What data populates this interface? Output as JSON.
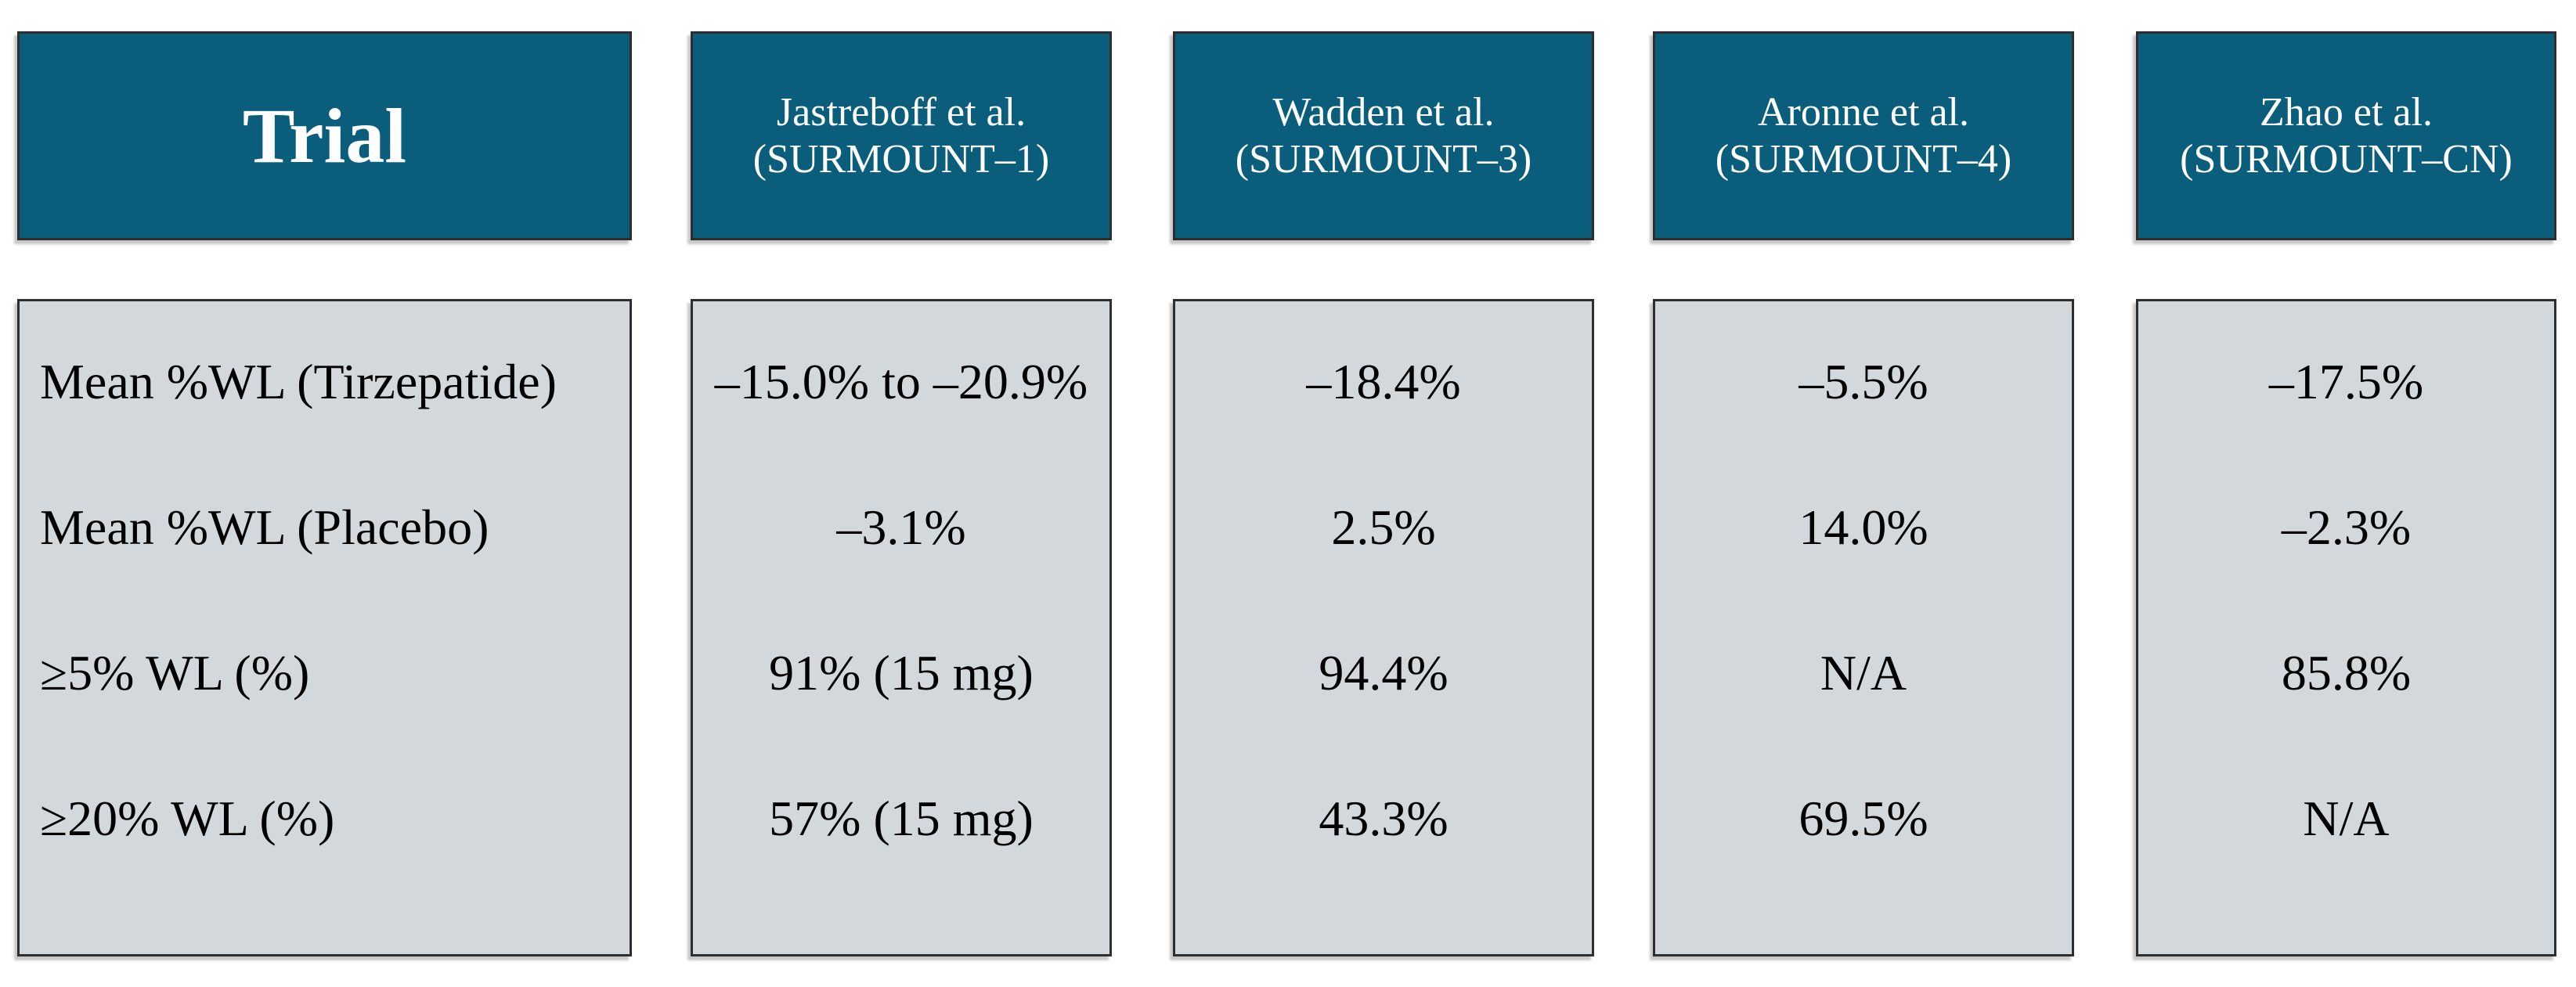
{
  "figure": {
    "type": "trial-comparison-table",
    "corner_header": "Trial",
    "columns": [
      {
        "author": "Jastreboff et al.",
        "trial": "(SURMOUNT–1)"
      },
      {
        "author": "Wadden et al.",
        "trial": "(SURMOUNT–3)"
      },
      {
        "author": "Aronne et al.",
        "trial": "(SURMOUNT–4)"
      },
      {
        "author": "Zhao et al.",
        "trial": "(SURMOUNT–CN)"
      }
    ],
    "rows": [
      {
        "label": "Mean %WL (Tirzepatide)",
        "values": [
          "–15.0% to –20.9%",
          "–18.4%",
          "–5.5%",
          "–17.5%"
        ]
      },
      {
        "label": "Mean %WL (Placebo)",
        "values": [
          "–3.1%",
          "2.5%",
          "14.0%",
          "–2.3%"
        ]
      },
      {
        "label": "≥5% WL (%)",
        "values": [
          "91% (15 mg)",
          "94.4%",
          "N/A",
          "85.8%"
        ]
      },
      {
        "label": "≥20% WL (%)",
        "values": [
          "57% (15 mg)",
          "43.3%",
          "69.5%",
          "N/A"
        ]
      }
    ],
    "colors": {
      "header_background": "#0B5D7C",
      "header_text": "#FFFFFF",
      "body_background": "#D3D8DD",
      "body_text": "#000000",
      "border": "#2E2E2E",
      "page_background": "#FFFFFF"
    }
  }
}
